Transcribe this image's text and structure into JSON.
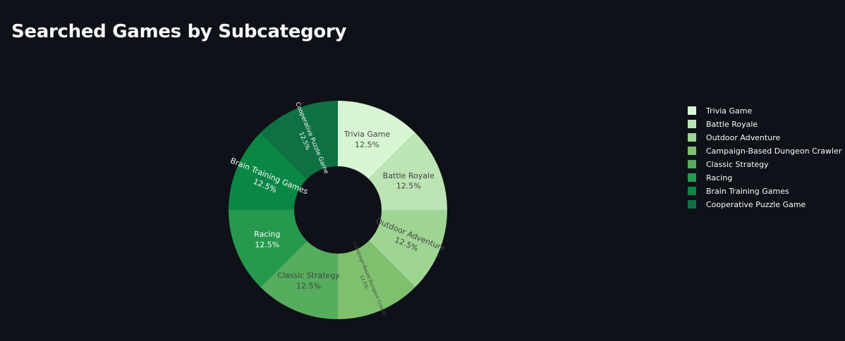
{
  "page": {
    "title": "Searched Games by Subcategory"
  },
  "colors": {
    "background": "#0e1117",
    "text": "#fafafa"
  },
  "chart_data": {
    "type": "pie",
    "hole": 0.4,
    "categories": [
      "Trivia Game",
      "Battle Royale",
      "Outdoor Adventure",
      "Campaign-Based Dungeon Crawler",
      "Classic Strategy",
      "Racing",
      "Brain Training Games",
      "Cooperative Puzzle Game"
    ],
    "values": [
      12.5,
      12.5,
      12.5,
      12.5,
      12.5,
      12.5,
      12.5,
      12.5
    ],
    "percent_labels": [
      "12.5%",
      "12.5%",
      "12.5%",
      "12.5%",
      "12.5%",
      "12.5%",
      "12.5%",
      "12.5%"
    ],
    "colors": [
      "#d8f5d3",
      "#bde4b4",
      "#9fd592",
      "#7fc06f",
      "#56ad5e",
      "#26994f",
      "#0a8645",
      "#0e7144"
    ],
    "label_colors": [
      "#444444",
      "#444444",
      "#444444",
      "#444444",
      "#444444",
      "#fafafa",
      "#fafafa",
      "#fafafa"
    ],
    "direction": "clockwise",
    "start_angle": "12 o'clock",
    "legend_position": "right"
  }
}
